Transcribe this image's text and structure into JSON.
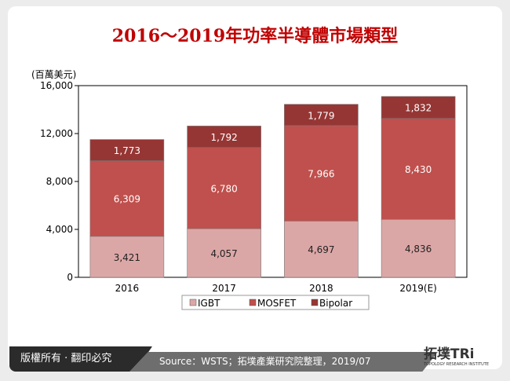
{
  "header": {
    "title": "2016～2019年功率半導體市場類型"
  },
  "chart_data": {
    "type": "bar",
    "stacked": true,
    "categories": [
      "2016",
      "2017",
      "2018",
      "2019(E)"
    ],
    "ylabel": "(百萬美元)",
    "ylim": [
      0,
      16000
    ],
    "yticks": [
      "0",
      "4,000",
      "8,000",
      "12,000",
      "16,000"
    ],
    "legend_position": "bottom",
    "series": [
      {
        "name": "IGBT",
        "values": [
          3421,
          4057,
          4697,
          4836
        ],
        "labels": [
          "3,421",
          "4,057",
          "4,697",
          "4,836"
        ],
        "color": "#dba7a6",
        "text_color": "#222222"
      },
      {
        "name": "MOSFET",
        "values": [
          6309,
          6780,
          7966,
          8430
        ],
        "labels": [
          "6,309",
          "6,780",
          "7,966",
          "8,430"
        ],
        "color": "#c0504d",
        "text_color": "#ffffff"
      },
      {
        "name": "Bipolar",
        "values": [
          1773,
          1792,
          1779,
          1832
        ],
        "labels": [
          "1,773",
          "1,792",
          "1,779",
          "1,832"
        ],
        "color": "#963634",
        "text_color": "#ffffff"
      }
    ]
  },
  "footer": {
    "copyright": "版權所有 · 翻印必究",
    "source": "Source：WSTS；拓墣產業研究院整理，2019/07",
    "logo": "拓墣TRi",
    "logo_sub": "TOPOLOGY RESEARCH INSTITUTE"
  }
}
